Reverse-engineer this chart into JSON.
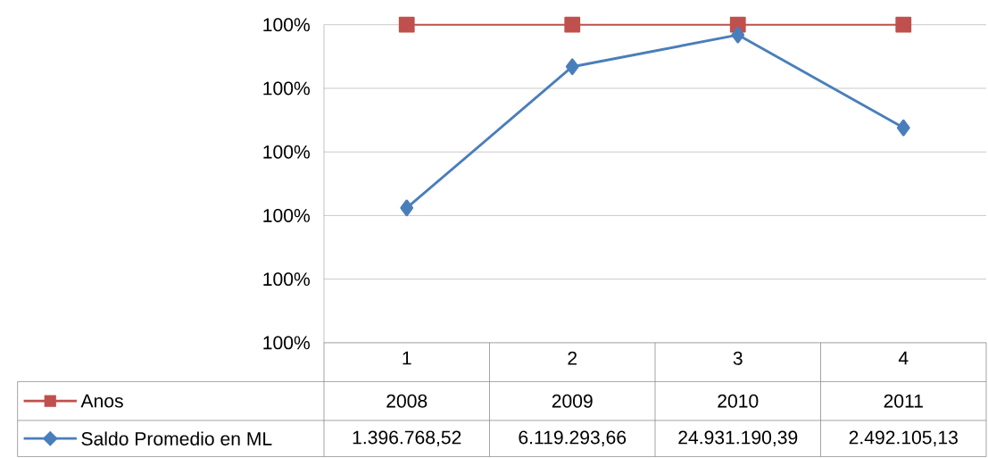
{
  "chart_data": {
    "type": "line",
    "categories": [
      "1",
      "2",
      "3",
      "4"
    ],
    "series": [
      {
        "name": "Anos",
        "color": "#c0504d",
        "marker": "square",
        "values": [
          1.0,
          1.0,
          1.0,
          1.0
        ]
      },
      {
        "name": "Saldo Promedio en ML",
        "color": "#4a7ebb",
        "marker": "diamond",
        "values": [
          0.99856,
          0.99967,
          0.99992,
          0.99919
        ]
      }
    ],
    "annotations": [
      "2008",
      "2009",
      "2010",
      "2011",
      "1.396.768,52",
      "6.119.293,66",
      "24.931.190,39",
      "2.492.105,13"
    ],
    "ylim": [
      0.9975,
      1.0
    ],
    "yticks": [
      {
        "value": 0.9975,
        "label": "100%"
      },
      {
        "value": 0.998,
        "label": "100%"
      },
      {
        "value": 0.9985,
        "label": "100%"
      },
      {
        "value": 0.999,
        "label": "100%"
      },
      {
        "value": 0.9995,
        "label": "100%"
      },
      {
        "value": 1.0,
        "label": "100%"
      }
    ],
    "grid": "y",
    "legend": "bottom"
  }
}
